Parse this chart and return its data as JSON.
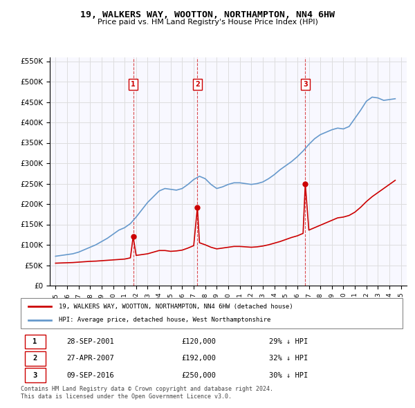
{
  "title": "19, WALKERS WAY, WOOTTON, NORTHAMPTON, NN4 6HW",
  "subtitle": "Price paid vs. HM Land Registry's House Price Index (HPI)",
  "legend_label_red": "19, WALKERS WAY, WOOTTON, NORTHAMPTON, NN4 6HW (detached house)",
  "legend_label_blue": "HPI: Average price, detached house, West Northamptonshire",
  "footer_line1": "Contains HM Land Registry data © Crown copyright and database right 2024.",
  "footer_line2": "This data is licensed under the Open Government Licence v3.0.",
  "transactions": [
    {
      "num": 1,
      "date": "28-SEP-2001",
      "price": 120000,
      "pct": "29%",
      "year_float": 2001.74
    },
    {
      "num": 2,
      "date": "27-APR-2007",
      "price": 192000,
      "pct": "32%",
      "year_float": 2007.32
    },
    {
      "num": 3,
      "date": "09-SEP-2016",
      "price": 250000,
      "pct": "30%",
      "year_float": 2016.69
    }
  ],
  "hpi_x": [
    1995.0,
    1995.5,
    1996.0,
    1996.5,
    1997.0,
    1997.5,
    1998.0,
    1998.5,
    1999.0,
    1999.5,
    2000.0,
    2000.5,
    2001.0,
    2001.5,
    2002.0,
    2002.5,
    2003.0,
    2003.5,
    2004.0,
    2004.5,
    2005.0,
    2005.5,
    2006.0,
    2006.5,
    2007.0,
    2007.5,
    2008.0,
    2008.5,
    2009.0,
    2009.5,
    2010.0,
    2010.5,
    2011.0,
    2011.5,
    2012.0,
    2012.5,
    2013.0,
    2013.5,
    2014.0,
    2014.5,
    2015.0,
    2015.5,
    2016.0,
    2016.5,
    2017.0,
    2017.5,
    2018.0,
    2018.5,
    2019.0,
    2019.5,
    2020.0,
    2020.5,
    2021.0,
    2021.5,
    2022.0,
    2022.5,
    2023.0,
    2023.5,
    2024.0,
    2024.5
  ],
  "hpi_y": [
    72000,
    74000,
    76000,
    78000,
    82000,
    88000,
    94000,
    100000,
    108000,
    116000,
    126000,
    136000,
    142000,
    152000,
    168000,
    186000,
    204000,
    218000,
    232000,
    238000,
    236000,
    234000,
    238000,
    248000,
    260000,
    268000,
    262000,
    248000,
    238000,
    242000,
    248000,
    252000,
    252000,
    250000,
    248000,
    250000,
    254000,
    262000,
    272000,
    284000,
    294000,
    304000,
    316000,
    330000,
    346000,
    360000,
    370000,
    376000,
    382000,
    386000,
    384000,
    390000,
    410000,
    430000,
    452000,
    462000,
    460000,
    454000,
    456000,
    458000
  ],
  "price_x": [
    1995.0,
    1995.5,
    1996.0,
    1996.5,
    1997.0,
    1997.5,
    1998.0,
    1998.5,
    1999.0,
    1999.5,
    2000.0,
    2000.5,
    2001.0,
    2001.5,
    2001.74,
    2002.0,
    2002.5,
    2003.0,
    2003.5,
    2004.0,
    2004.5,
    2005.0,
    2005.5,
    2006.0,
    2006.5,
    2007.0,
    2007.32,
    2007.5,
    2008.0,
    2008.5,
    2009.0,
    2009.5,
    2010.0,
    2010.5,
    2011.0,
    2011.5,
    2012.0,
    2012.5,
    2013.0,
    2013.5,
    2014.0,
    2014.5,
    2015.0,
    2015.5,
    2016.0,
    2016.5,
    2016.69,
    2017.0,
    2017.5,
    2018.0,
    2018.5,
    2019.0,
    2019.5,
    2020.0,
    2020.5,
    2021.0,
    2021.5,
    2022.0,
    2022.5,
    2023.0,
    2023.5,
    2024.0,
    2024.5
  ],
  "price_y": [
    55000,
    55500,
    56000,
    56500,
    57500,
    58500,
    59500,
    60000,
    61000,
    62000,
    63000,
    64000,
    65000,
    68000,
    120000,
    74000,
    76000,
    78000,
    82000,
    86000,
    86000,
    84000,
    85000,
    87000,
    92000,
    98000,
    192000,
    105000,
    100000,
    94000,
    90000,
    92000,
    94000,
    96000,
    96000,
    95000,
    94000,
    95000,
    97000,
    100000,
    104000,
    108000,
    113000,
    118000,
    122000,
    128000,
    250000,
    136000,
    142000,
    148000,
    154000,
    160000,
    166000,
    168000,
    172000,
    180000,
    192000,
    206000,
    218000,
    228000,
    238000,
    248000,
    258000
  ],
  "ylim": [
    0,
    560000
  ],
  "xlim": [
    1994.5,
    2025.5
  ],
  "yticks": [
    0,
    50000,
    100000,
    150000,
    200000,
    250000,
    300000,
    350000,
    400000,
    450000,
    500000,
    550000
  ],
  "xticks": [
    1995,
    1996,
    1997,
    1998,
    1999,
    2000,
    2001,
    2002,
    2003,
    2004,
    2005,
    2006,
    2007,
    2008,
    2009,
    2010,
    2011,
    2012,
    2013,
    2014,
    2015,
    2016,
    2017,
    2018,
    2019,
    2020,
    2021,
    2022,
    2023,
    2024,
    2025
  ],
  "red_color": "#cc0000",
  "blue_color": "#6699cc",
  "marker_color": "#cc0000",
  "vline_color": "#cc0000",
  "grid_color": "#dddddd",
  "bg_color": "#ffffff",
  "plot_bg": "#f8f8ff"
}
